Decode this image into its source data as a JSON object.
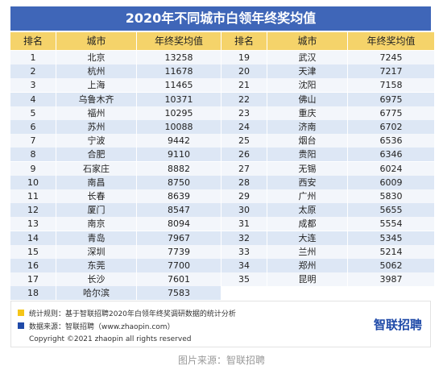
{
  "title": "2020年不同城市白领年终奖均值",
  "header": [
    "排名",
    "城市",
    "年终奖均值"
  ],
  "left_rows": [
    [
      1,
      "北京",
      13258
    ],
    [
      2,
      "杭州",
      11678
    ],
    [
      3,
      "上海",
      11465
    ],
    [
      4,
      "乌鲁木齐",
      10371
    ],
    [
      5,
      "福州",
      10295
    ],
    [
      6,
      "苏州",
      10088
    ],
    [
      7,
      "宁波",
      9442
    ],
    [
      8,
      "合肥",
      9110
    ],
    [
      9,
      "石家庄",
      8882
    ],
    [
      10,
      "南昌",
      8750
    ],
    [
      11,
      "长春",
      8639
    ],
    [
      12,
      "厦门",
      8547
    ],
    [
      13,
      "南京",
      8094
    ],
    [
      14,
      "青岛",
      7967
    ],
    [
      15,
      "深圳",
      7739
    ],
    [
      16,
      "东莞",
      7700
    ],
    [
      17,
      "长沙",
      7601
    ],
    [
      18,
      "哈尔滨",
      7583
    ]
  ],
  "right_rows": [
    [
      19,
      "武汉",
      7245
    ],
    [
      20,
      "天津",
      7217
    ],
    [
      21,
      "沈阳",
      7158
    ],
    [
      22,
      "佛山",
      6975
    ],
    [
      23,
      "重庆",
      6775
    ],
    [
      24,
      "济南",
      6702
    ],
    [
      25,
      "烟台",
      6536
    ],
    [
      26,
      "贵阳",
      6346
    ],
    [
      27,
      "无锡",
      6024
    ],
    [
      28,
      "西安",
      6009
    ],
    [
      29,
      "广州",
      5830
    ],
    [
      30,
      "太原",
      5655
    ],
    [
      31,
      "成都",
      5554
    ],
    [
      32,
      "大连",
      5345
    ],
    [
      33,
      "兰州",
      5214
    ],
    [
      34,
      "郑州",
      5062
    ],
    [
      35,
      "昆明",
      3987
    ]
  ],
  "notes": [
    "统计规则：基于智联招聘2020年白领年终奖调研数据的统计分析",
    "数据来源：智联招聘（www.zhaopin.com）"
  ],
  "logo": "智联招聘",
  "copyright": "Copyright ©2021 zhaopin all rights reserved",
  "caption": "图片来源：智联招聘"
}
